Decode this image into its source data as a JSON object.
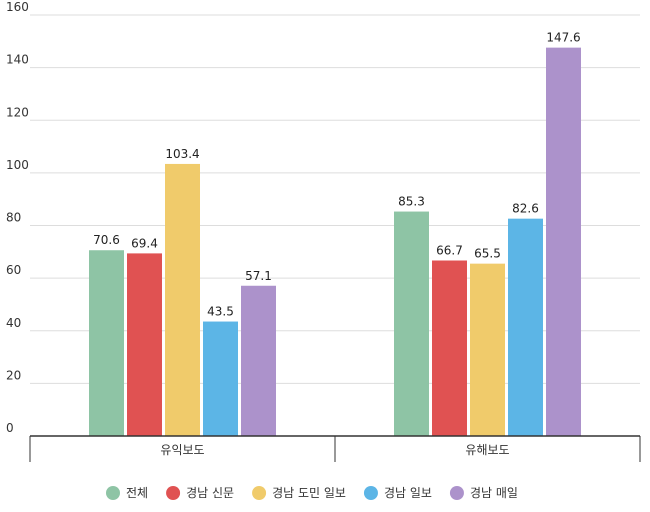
{
  "chart_data": {
    "type": "bar",
    "categories": [
      "유익보도",
      "유해보도"
    ],
    "series": [
      {
        "name": "전체",
        "color": "#8ec4a5",
        "values": [
          70.6,
          85.3
        ]
      },
      {
        "name": "경남 신문",
        "color": "#e05252",
        "values": [
          69.4,
          66.7
        ]
      },
      {
        "name": "경남 도민 일보",
        "color": "#f0cb6b",
        "values": [
          103.4,
          65.5
        ]
      },
      {
        "name": "경남 일보",
        "color": "#5cb5e6",
        "values": [
          43.5,
          82.6
        ]
      },
      {
        "name": "경남 매일",
        "color": "#ac92cb",
        "values": [
          57.1,
          147.6
        ]
      }
    ],
    "data_labels": [
      [
        "70.6",
        "69.4",
        "103.4",
        "43.5",
        "57.1"
      ],
      [
        "85.3",
        "66.7",
        "65.5",
        "82.6",
        "147.6"
      ]
    ],
    "yticks": [
      0,
      20,
      40,
      60,
      80,
      100,
      120,
      140,
      160
    ],
    "ylim": [
      0,
      160
    ],
    "grid": true,
    "legend_position": "bottom"
  }
}
